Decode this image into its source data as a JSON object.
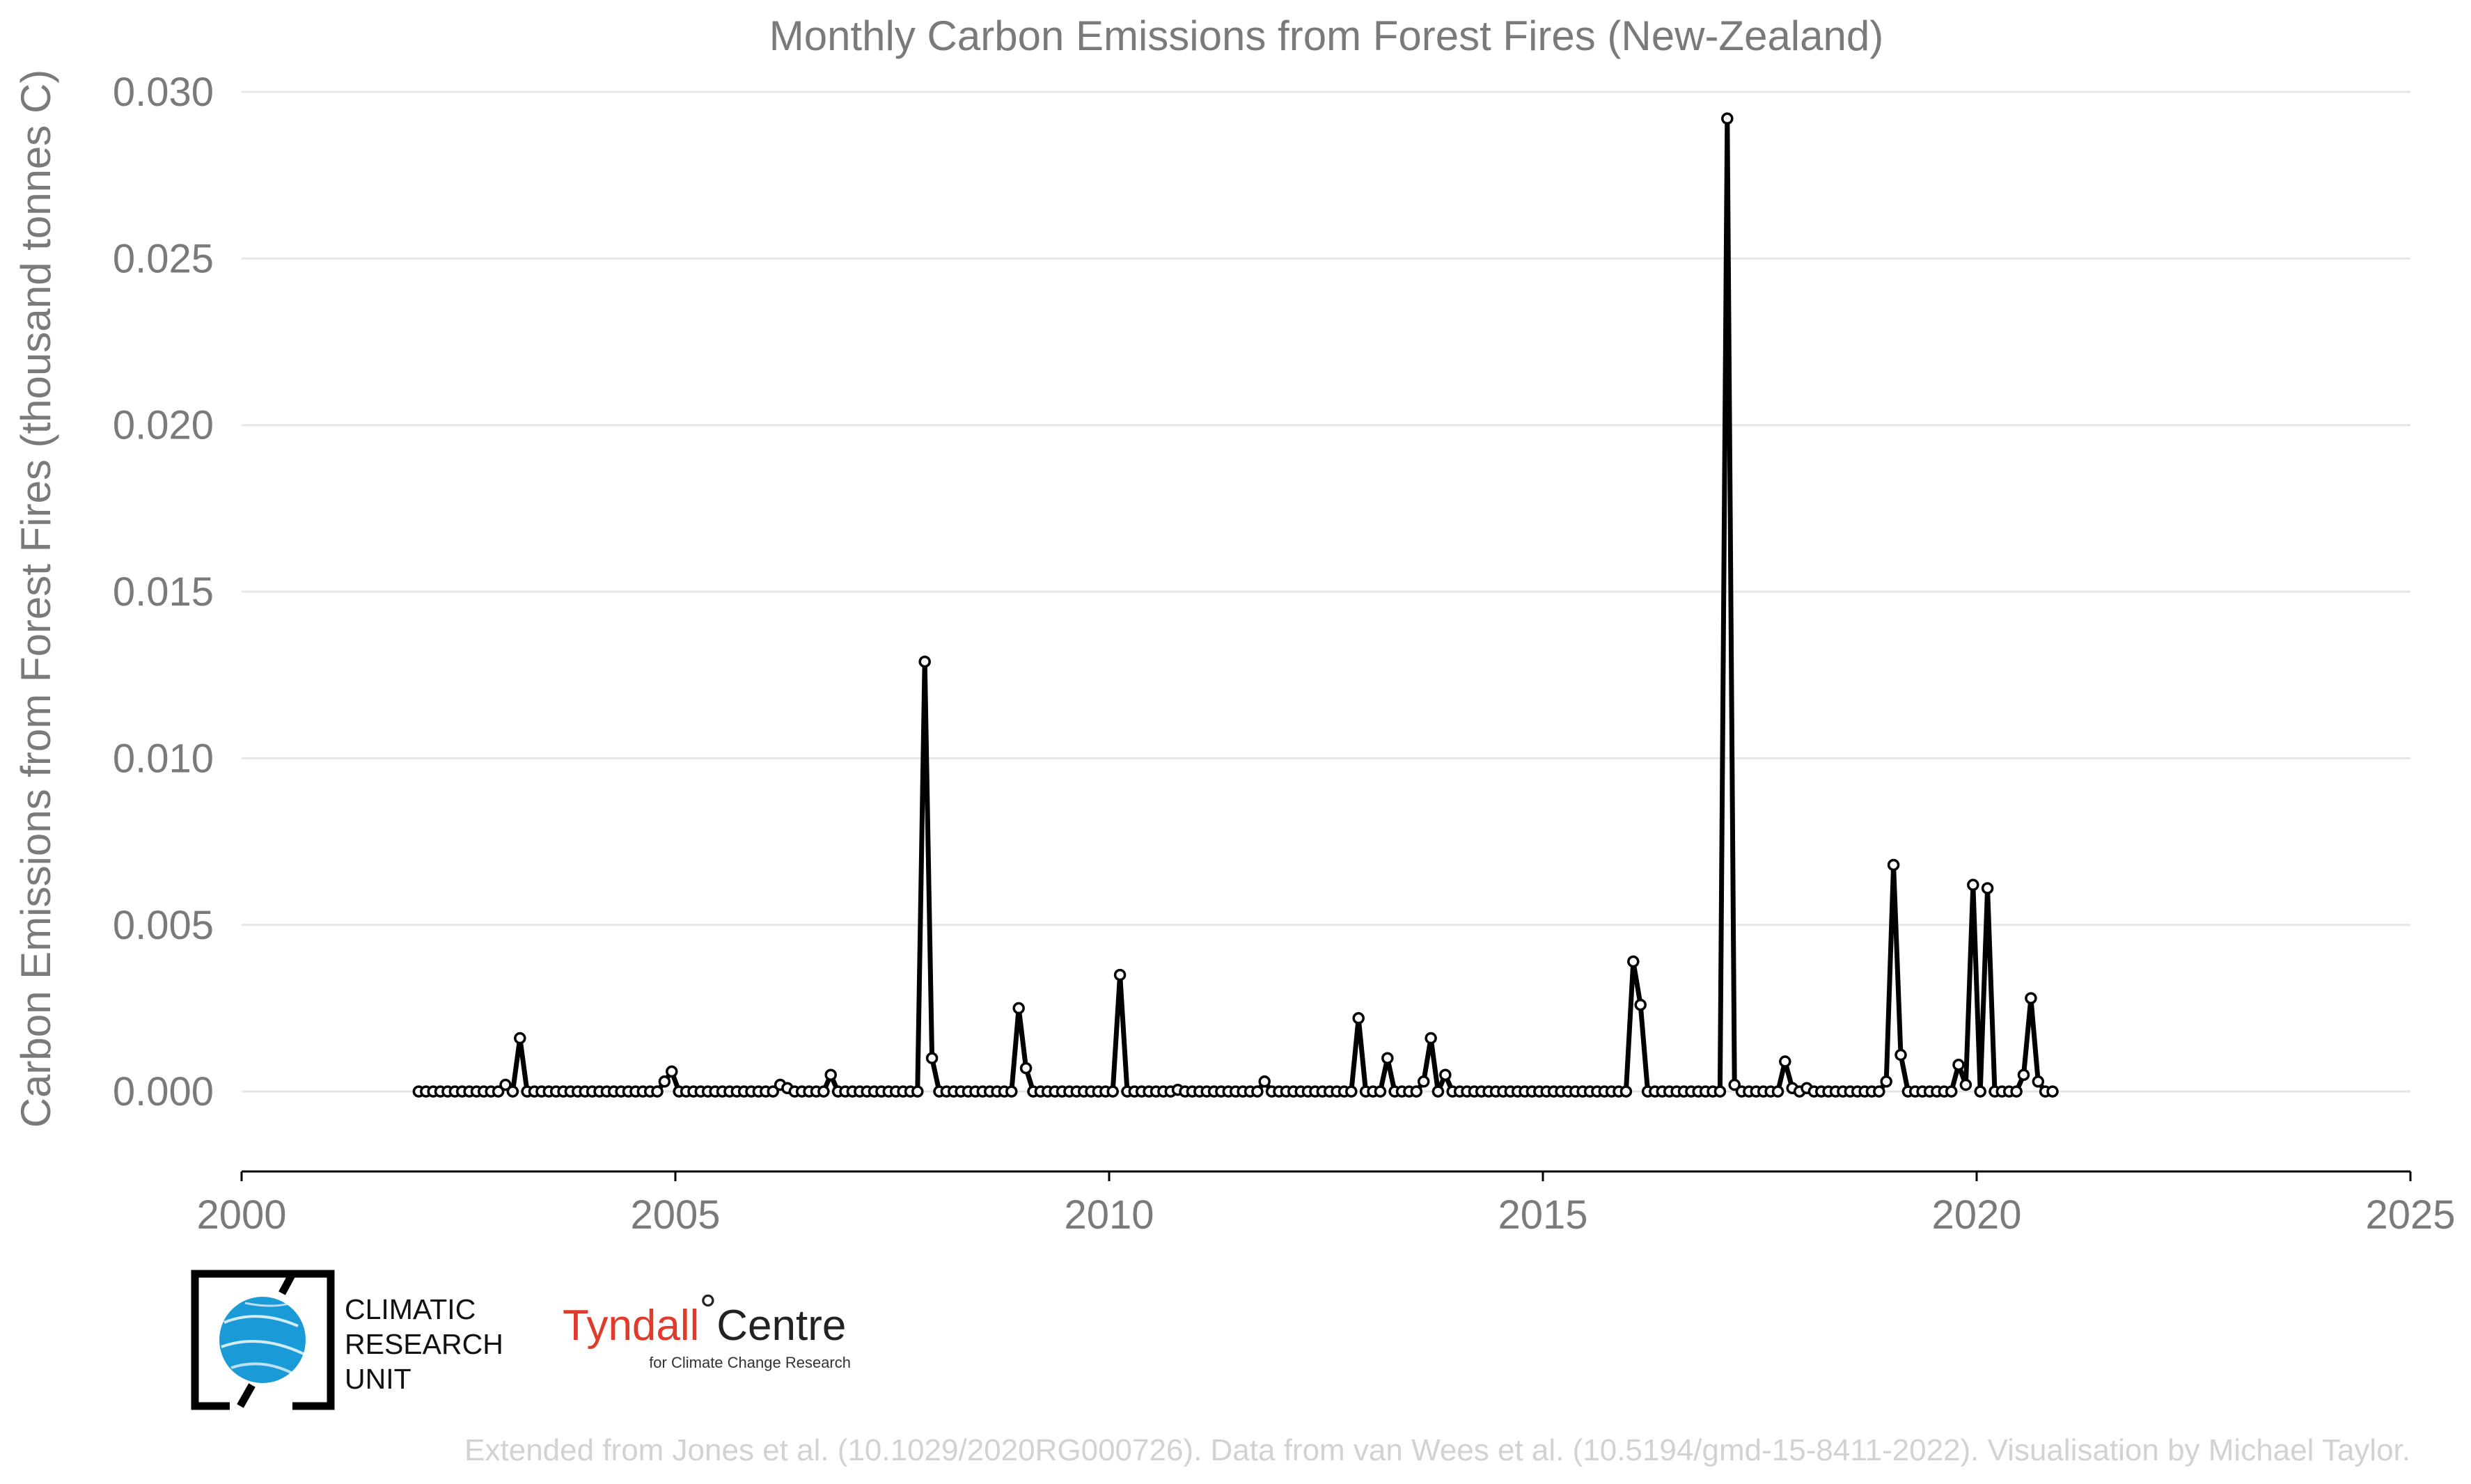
{
  "chart_data": {
    "type": "line",
    "title": "Monthly Carbon Emissions from Forest Fires (New-Zealand)",
    "xlabel": "",
    "ylabel": "Carbon Emissions from Forest Fires (thousand tonnes C)",
    "xlim": [
      2000,
      2025
    ],
    "ylim": [
      -0.0024,
      0.03
    ],
    "x_ticks": [
      "2000",
      "2005",
      "2010",
      "2015",
      "2020",
      "2025"
    ],
    "y_ticks": [
      "0.000",
      "0.005",
      "0.010",
      "0.015",
      "0.020",
      "0.025",
      "0.030"
    ],
    "grid": "horizontal",
    "legend": "none",
    "start_year": 2002,
    "values": [
      0,
      0,
      0,
      0,
      0,
      0,
      0,
      0,
      0,
      0,
      0,
      0,
      0.0002,
      0,
      0.0016,
      0,
      0,
      0,
      0,
      0,
      0,
      0,
      0,
      0,
      0,
      0,
      0,
      0,
      0,
      0,
      0,
      0,
      0,
      0,
      0.0003,
      0.0006,
      0,
      0,
      0,
      0,
      0,
      0,
      0,
      0,
      0,
      0,
      0,
      0,
      0,
      0,
      0.0002,
      0.0001,
      0,
      0,
      0,
      0,
      0,
      0.0005,
      0,
      0,
      0,
      0,
      0,
      0,
      0,
      0,
      0,
      0,
      0,
      0,
      0.0129,
      0.001,
      0,
      0,
      0,
      0,
      0,
      0,
      0,
      0,
      0,
      0,
      0,
      0.0025,
      0.0007,
      0,
      0,
      0,
      0,
      0,
      0,
      0,
      0,
      0,
      0,
      0,
      0,
      0.0035,
      0,
      0,
      0,
      0,
      0,
      0,
      0,
      5e-05,
      0,
      0,
      0,
      0,
      0,
      0,
      0,
      0,
      0,
      0,
      0,
      0.0003,
      0,
      0,
      0,
      0,
      0,
      0,
      0,
      0,
      0,
      0,
      0,
      0,
      0.0022,
      0,
      0,
      0,
      0.001,
      0,
      0,
      0,
      0,
      0.0003,
      0.0016,
      0,
      0.0005,
      0,
      0,
      0,
      0,
      0,
      0,
      0,
      0,
      0,
      0,
      0,
      0,
      0,
      0,
      0,
      0,
      0,
      0,
      0,
      0,
      0,
      0,
      0,
      0,
      0,
      0.0039,
      0.0026,
      0,
      0,
      0,
      0,
      0,
      0,
      0,
      0,
      0,
      0,
      0,
      0.0292,
      0.0002,
      0,
      0,
      0,
      0,
      0,
      0,
      0.0009,
      0.0001,
      0,
      0.0001,
      0,
      0,
      0,
      0,
      0,
      0,
      0,
      0,
      0,
      0,
      0.0003,
      0.0068,
      0.0011,
      0,
      0,
      0,
      0,
      0,
      0,
      0,
      0.0008,
      0.0002,
      0.0062,
      0,
      0.0061,
      0,
      0,
      0,
      0,
      0.0005,
      0.0028,
      0.0003,
      0,
      0
    ]
  },
  "logos": {
    "cru_line1": "CLIMATIC",
    "cru_line2": "RESEARCH",
    "cru_line3": "UNIT",
    "tyndall_red": "Tyndall",
    "tyndall_degree": "°",
    "tyndall_black": "Centre",
    "tyndall_sub": "for Climate Change Research",
    "colors": {
      "tyndall": "#e03a2a",
      "globe": "#1a9bd7"
    }
  },
  "credit": "Extended from Jones et al. (10.1029/2020RG000726). Data from van Wees et al. (10.5194/gmd-15-8411-2022). Visualisation by Michael Taylor.",
  "colors": {
    "series": "#000000",
    "text": "#7a7a7a",
    "grid": "#e6e6e6",
    "credit": "#d2d2d2"
  }
}
